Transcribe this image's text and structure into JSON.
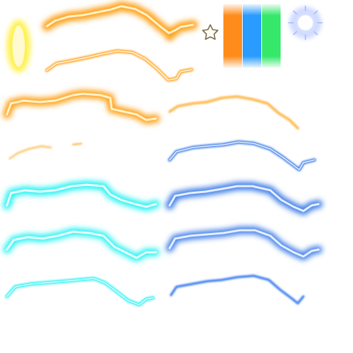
{
  "colors": {
    "orange": "#ffa21f",
    "orange_core": "#fff3c8",
    "yellow": "#fff14a",
    "cyan": "#2af2f2",
    "cyan_core": "#e9ffff",
    "blue": "#3f7fe8",
    "blue_core": "#e6f0ff",
    "bar_orange": "#ff8c1a",
    "bar_blue": "#2a9bff",
    "bar_green": "#35e86a",
    "burst": "#9fb5ff"
  },
  "sprites": [
    {
      "name": "yellow-oval-glow-sprite",
      "color": "yellow"
    },
    {
      "name": "orange-lightning-thick-glow",
      "color": "orange"
    },
    {
      "name": "orange-lightning-outline",
      "color": "orange"
    },
    {
      "name": "orange-lightning-medium-glow",
      "color": "orange"
    },
    {
      "name": "orange-lightning-thin",
      "color": "orange"
    },
    {
      "name": "orange-lightning-fragment",
      "color": "orange"
    },
    {
      "name": "cyan-lightning-thick-glow",
      "color": "cyan"
    },
    {
      "name": "cyan-lightning-medium-glow",
      "color": "cyan"
    },
    {
      "name": "cyan-lightning-thin",
      "color": "cyan"
    },
    {
      "name": "blue-lightning-outline",
      "color": "blue"
    },
    {
      "name": "blue-lightning-thick-glow",
      "color": "blue"
    },
    {
      "name": "blue-lightning-medium-glow",
      "color": "blue"
    },
    {
      "name": "blue-lightning-thin",
      "color": "blue"
    },
    {
      "name": "star-outline-icon",
      "color": "orange"
    },
    {
      "name": "gradient-bars",
      "color": "bar_orange"
    },
    {
      "name": "spark-burst-sprite",
      "color": "burst"
    }
  ]
}
